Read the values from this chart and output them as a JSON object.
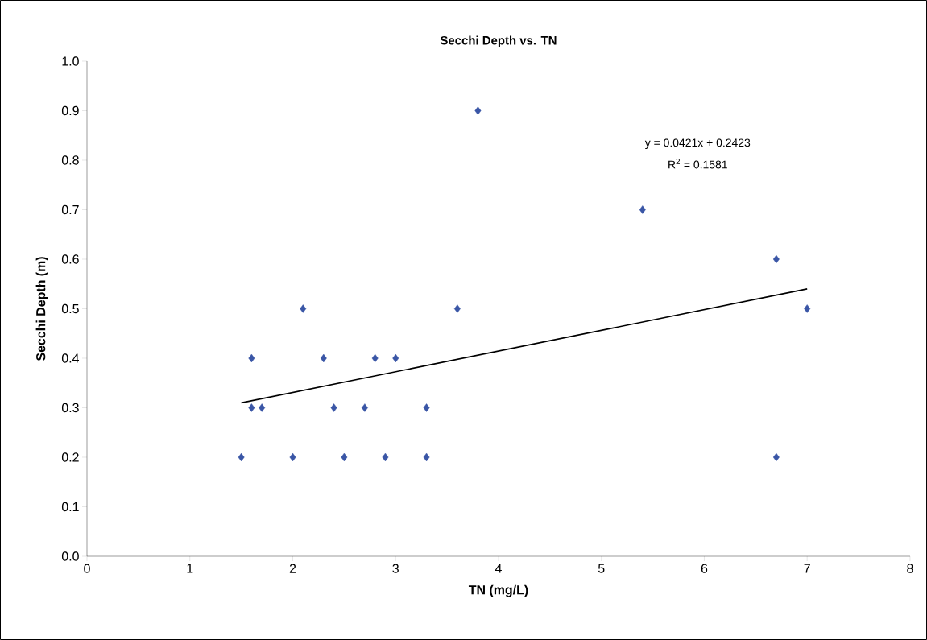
{
  "chart_data": {
    "type": "scatter",
    "title": "Secchi Depth vs. TN",
    "xlabel": "TN (mg/L)",
    "ylabel": "Secchi Depth (m)",
    "xlim": [
      0,
      8
    ],
    "xticks": [
      0,
      1,
      2,
      3,
      4,
      5,
      6,
      7,
      8
    ],
    "ylim": [
      0,
      1
    ],
    "yticks": [
      {
        "value": 0,
        "label": "0.0"
      },
      {
        "value": 0.1,
        "label": "0.1"
      },
      {
        "value": 0.2,
        "label": "0.2"
      },
      {
        "value": 0.3,
        "label": "0.3"
      },
      {
        "value": 0.4,
        "label": "0.4"
      },
      {
        "value": 0.5,
        "label": "0.5"
      },
      {
        "value": 0.6,
        "label": "0.6"
      },
      {
        "value": 0.7,
        "label": "0.7"
      },
      {
        "value": 0.8,
        "label": "0.8"
      },
      {
        "value": 0.9,
        "label": "0.9"
      },
      {
        "value": 1,
        "label": "1.0"
      }
    ],
    "series": [
      {
        "marker": "diamond",
        "color": "#3a56a6",
        "x": [
          1.5,
          1.6,
          1.6,
          1.7,
          2.0,
          2.1,
          2.3,
          2.4,
          2.5,
          2.7,
          2.8,
          2.9,
          3.0,
          3.3,
          3.3,
          3.6,
          3.8,
          5.4,
          6.7,
          6.7,
          7.0
        ],
        "values": [
          0.2,
          0.4,
          0.3,
          0.3,
          0.2,
          0.5,
          0.4,
          0.3,
          0.2,
          0.3,
          0.4,
          0.2,
          0.4,
          0.3,
          0.2,
          0.5,
          0.9,
          0.7,
          0.6,
          0.2,
          0.5
        ]
      },
      {
        "type": "line",
        "marker": "none",
        "color": "#000000",
        "line_style": "solid",
        "x": [
          1.5,
          7.0
        ],
        "values": [
          0.31,
          0.54
        ]
      }
    ],
    "annotations": [
      "y = 0.0421x + 0.2423",
      "R$^{2}$ = 0.1581"
    ]
  }
}
